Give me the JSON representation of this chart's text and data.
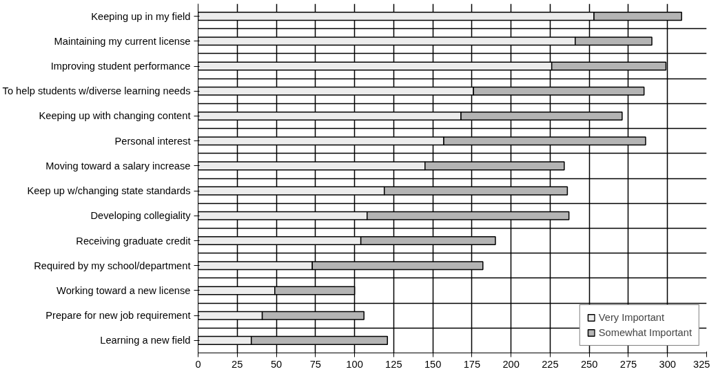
{
  "chart_data": {
    "type": "bar",
    "orientation": "horizontal",
    "stacked": true,
    "categories": [
      "Keeping up in my field",
      "Maintaining my current license",
      "Improving student performance",
      "To help students w/diverse learning needs",
      "Keeping up with changing content",
      "Personal interest",
      "Moving toward a salary increase",
      "Keep up w/changing state standards",
      "Developing collegiality",
      "Receiving graduate credit",
      "Required by my school/department",
      "Working toward a new license",
      "Prepare for new job requirement",
      "Learning a new field"
    ],
    "series": [
      {
        "name": "Very Important",
        "color": "#ececec",
        "values": [
          253,
          241,
          226,
          176,
          168,
          157,
          145,
          119,
          108,
          104,
          73,
          49,
          41,
          34
        ]
      },
      {
        "name": "Somewhat Important",
        "color": "#b4b4b4",
        "values": [
          56,
          49,
          73,
          109,
          103,
          129,
          89,
          117,
          129,
          86,
          109,
          51,
          65,
          87
        ]
      }
    ],
    "xlim": [
      0,
      325
    ],
    "xticks": [
      0,
      25,
      50,
      75,
      100,
      125,
      150,
      175,
      200,
      225,
      250,
      275,
      300,
      325
    ],
    "grid": true,
    "legend": "bottom right"
  }
}
